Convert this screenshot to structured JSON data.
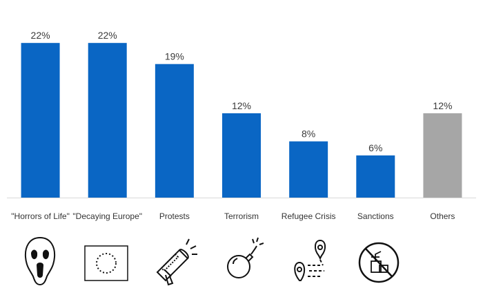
{
  "chart_data": {
    "type": "bar",
    "categories": [
      "\"Horrors of Life\"",
      "\"Decaying Europe\"",
      "Protests",
      "Terrorism",
      "Refugee Crisis",
      "Sanctions",
      "Others"
    ],
    "values": [
      22,
      22,
      19,
      12,
      8,
      6,
      12
    ],
    "value_labels": [
      "22%",
      "22%",
      "19%",
      "12%",
      "8%",
      "6%",
      "12%"
    ],
    "ylim": [
      0,
      23
    ],
    "grid": false,
    "legend": "none",
    "colors": {
      "primary": "#0a66c4",
      "others": "#a6a6a6",
      "baseline": "#d9d9d9"
    },
    "bar_colors": [
      "#0a66c4",
      "#0a66c4",
      "#0a66c4",
      "#0a66c4",
      "#0a66c4",
      "#0a66c4",
      "#a6a6a6"
    ]
  },
  "icons": [
    "scream-mask-icon",
    "eu-flag-icon",
    "megaphone-icon",
    "bomb-icon",
    "migration-route-icon",
    "no-shopping-icon"
  ]
}
